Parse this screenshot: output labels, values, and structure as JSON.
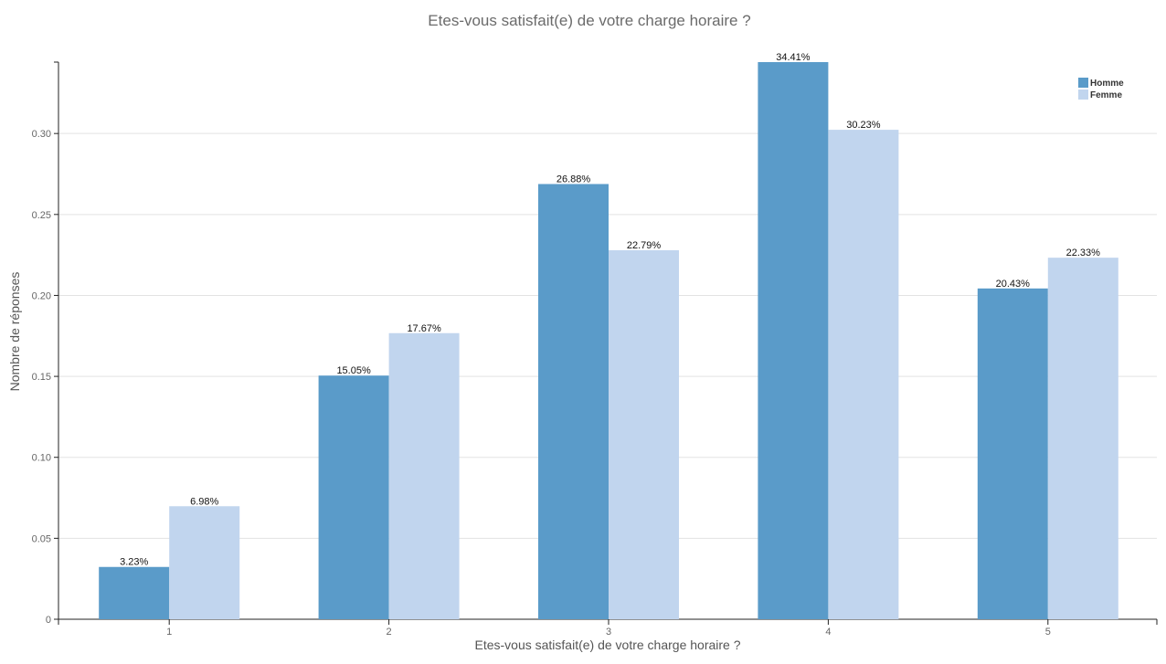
{
  "chart_data": {
    "type": "bar",
    "title": "Etes-vous satisfait(e) de votre charge horaire ?",
    "xlabel": "Etes-vous satisfait(e) de votre charge horaire ?",
    "ylabel": "Nombre de réponses",
    "categories": [
      "1",
      "2",
      "3",
      "4",
      "5"
    ],
    "ylim": [
      0,
      0.3441
    ],
    "yticks": [
      0,
      0.05,
      0.1,
      0.15,
      0.2,
      0.25,
      0.3
    ],
    "ytick_labels": [
      "0",
      "0.05",
      "0.10",
      "0.15",
      "0.20",
      "0.25",
      "0.30"
    ],
    "grid": true,
    "legend_position": "top-right",
    "series": [
      {
        "name": "Homme",
        "color": "#5a9bc9",
        "values": [
          0.0323,
          0.1505,
          0.2688,
          0.3441,
          0.2043
        ],
        "labels": [
          "3.23%",
          "15.05%",
          "26.88%",
          "34.41%",
          "20.43%"
        ]
      },
      {
        "name": "Femme",
        "color": "#c1d5ee",
        "values": [
          0.0698,
          0.1767,
          0.2279,
          0.3023,
          0.2233
        ],
        "labels": [
          "6.98%",
          "17.67%",
          "22.79%",
          "30.23%",
          "22.33%"
        ]
      }
    ]
  }
}
